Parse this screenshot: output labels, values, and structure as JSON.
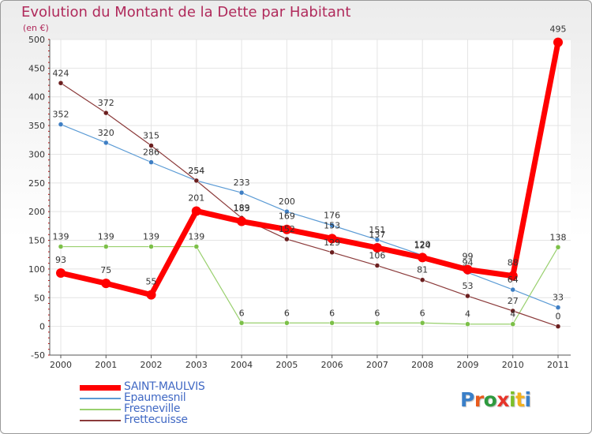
{
  "title": "Evolution du Montant de la Dette par Habitant",
  "unit": "(en €)",
  "logo": [
    "P",
    "r",
    "o",
    "x",
    "i",
    "t",
    "i"
  ],
  "logo_colors": [
    "#3a7fc8",
    "#e85a1c",
    "#2e9a3e",
    "#e7342a",
    "#7bbf2a",
    "#f2b01e",
    "#3a7fc8"
  ],
  "chart_data": {
    "type": "line",
    "title": "Evolution du Montant de la Dette par Habitant",
    "ylabel": "(en €)",
    "ylim": [
      -50,
      500
    ],
    "ytick_step": 50,
    "x": [
      "2000",
      "2001",
      "2002",
      "2003",
      "2004",
      "2005",
      "2006",
      "2007",
      "2008",
      "2009",
      "2010",
      "2011"
    ],
    "series": [
      {
        "name": "Epaumesnil",
        "color": "#5b9bd5",
        "marker": "#3f7fc4",
        "width": 1.2,
        "values": [
          352,
          320,
          286,
          254,
          233,
          200,
          176,
          151,
          124,
          94,
          64,
          33
        ],
        "labels": [
          "352",
          "320",
          "286",
          "254",
          "233",
          "200",
          "176",
          "151",
          "124",
          "94",
          "64",
          "33"
        ]
      },
      {
        "name": "Fresneville",
        "color": "#99d06e",
        "marker": "#7cc048",
        "width": 1.2,
        "values": [
          139,
          139,
          139,
          139,
          6,
          6,
          6,
          6,
          6,
          4,
          4,
          138
        ],
        "labels": [
          "139",
          "139",
          "139",
          "139",
          "6",
          "6",
          "6",
          "6",
          "6",
          "4",
          "4",
          "138"
        ]
      },
      {
        "name": "Frettecuisse",
        "color": "#8b3a3a",
        "marker": "#6b1f1f",
        "width": 1.2,
        "values": [
          424,
          372,
          315,
          254,
          189,
          152,
          129,
          106,
          81,
          53,
          27,
          0
        ],
        "labels": [
          "424",
          "372",
          "315",
          "254",
          "189",
          "152",
          "129",
          "106",
          "81",
          "53",
          "27",
          "0"
        ]
      },
      {
        "name": "SAINT-MAULVIS",
        "color": "#ff0000",
        "marker": "#ff0000",
        "width": 7,
        "values": [
          93,
          75,
          55,
          201,
          183,
          169,
          153,
          137,
          120,
          99,
          88,
          495
        ],
        "labels": [
          "93",
          "75",
          "55",
          "201",
          "183",
          "169",
          "153",
          "137",
          "120",
          "99",
          "88",
          "495"
        ]
      }
    ],
    "legend": [
      "SAINT-MAULVIS",
      "Epaumesnil",
      "Fresneville",
      "Frettecuisse"
    ],
    "legend_colors": [
      "#ff0000",
      "#5b9bd5",
      "#99d06e",
      "#8b3a3a"
    ],
    "grid": true
  }
}
